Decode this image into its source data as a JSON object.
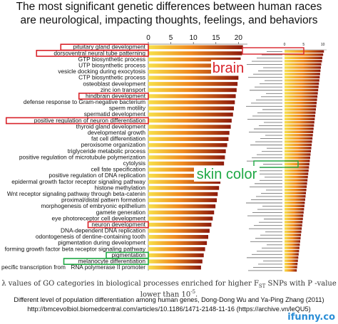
{
  "header": {
    "title_line1": "The most significant genetic differences between human races",
    "title_line2": "are neurological, impacting thoughts, feelings, and behaviors"
  },
  "chart_data": [
    {
      "type": "bar",
      "orientation": "horizontal",
      "xlim": [
        0,
        22
      ],
      "ticks": [
        "0",
        "5",
        "10",
        "15",
        "20"
      ],
      "categories": [
        "pituitary gland development",
        "dorsoventral neural tube patterning",
        "GTP biosynthetic process",
        "UTP biosynthetic process",
        "vesicle docking during exocytosis",
        "CTP biosynthetic process",
        "osteoblast development",
        "zinc ion transport",
        "hindbrain development",
        "defense response to Gram-negative bacterium",
        "sperm motility",
        "spermatid development",
        "positive regulation of neuron differentiation",
        "thyroid gland development",
        "developmental growth",
        "fat cell differentiation",
        "peroxisome organization",
        "triglyceride metabolic process",
        "positive regulation of microtubule polymerization",
        "cytolysis",
        "cell fate specification",
        "positive regulation of DNA replication",
        "epidermal growth factor receptor signaling pathway",
        "histone methylation",
        "Wnt receptor signaling pathway through beta-catenin",
        "proximal/distal pattern formation",
        "morphogenesis of embryonic epithelium",
        "gamete generation",
        "eye photoreceptor cell development",
        "neuron development",
        "DNA-dependent DNA replication",
        "odontogenesis of dentine-containing tooth",
        "pigmentation during development",
        "forming growth factor beta receptor signaling pathway",
        "pigmentation",
        "melanocyte differentiation",
        "RNA polymerase II promoter"
      ],
      "values": [
        21.0,
        20.8,
        20.5,
        20.4,
        20.1,
        20.0,
        19.8,
        19.6,
        19.4,
        19.2,
        19.0,
        18.8,
        18.5,
        18.3,
        18.0,
        17.8,
        17.5,
        17.2,
        17.0,
        16.8,
        16.5,
        16.2,
        16.0,
        15.7,
        15.4,
        15.2,
        14.9,
        14.6,
        14.3,
        14.0,
        13.6,
        13.3,
        13.0,
        12.6,
        12.3,
        12.0,
        11.7
      ],
      "highlighted": [
        "pituitary gland development",
        "dorsoventral neural tube patterning",
        "hindbrain development",
        "positive regulation of neuron differentiation",
        "neuron development",
        "pigmentation",
        "melanocyte differentiation"
      ],
      "left_partial_labels": [
        "pecific transcription from",
        "RNA polymerase II promoter"
      ]
    },
    {
      "type": "bar",
      "orientation": "horizontal",
      "xlim": [
        0,
        11
      ],
      "ticks": [
        "0",
        "5",
        "10"
      ],
      "values": [
        10.3,
        10.1,
        9.9,
        9.8,
        9.6,
        9.5,
        9.4,
        9.3,
        9.2,
        9.1,
        9.0,
        8.9,
        8.8,
        8.7,
        8.6,
        8.5,
        8.4,
        8.3,
        8.2,
        8.1,
        8.0,
        7.9,
        7.8,
        7.7,
        7.6,
        7.5,
        7.4,
        7.3,
        7.2,
        7.1,
        7.0,
        6.9,
        6.8,
        6.7,
        6.6,
        6.5,
        6.4,
        6.3,
        6.2,
        6.1,
        6.0,
        5.9,
        5.8,
        5.7,
        5.6,
        5.5,
        5.4,
        5.3,
        5.2,
        5.1,
        5.0,
        4.9,
        4.8,
        4.7,
        4.6,
        4.5,
        4.4,
        4.3,
        4.2,
        4.1,
        4.0,
        3.9,
        3.8,
        3.7,
        3.6,
        3.5,
        3.4,
        3.3,
        3.2
      ]
    }
  ],
  "annotations": {
    "brain": "brain",
    "skin_color": "skin color"
  },
  "caption": {
    "prefix": "λ values of GO categories in biological processes enriched for higher F",
    "subscript": "ST",
    "suffix": " SNPs with P -value lower than 10",
    "superscript": "-5",
    "end": "."
  },
  "credit": {
    "line1": "Different level of population differentiation among human genes, Dong-Dong Wu and Ya-Ping Zhang (2011)",
    "line2": "http://bmcevolbiol.biomedcentral.com/articles/10.1186/1471-2148-11-16 (https://archive.vn/leQU5)"
  },
  "watermark": "ifunny.co",
  "colors": {
    "bar_light": "#f7e04a",
    "bar_mid": "#f08a1e",
    "bar_dark": "#8c1a0c",
    "brain_box": "#d8232a",
    "skin_box": "#1fa845",
    "brain_text": "#d8232a",
    "skin_text": "#1fa845"
  }
}
